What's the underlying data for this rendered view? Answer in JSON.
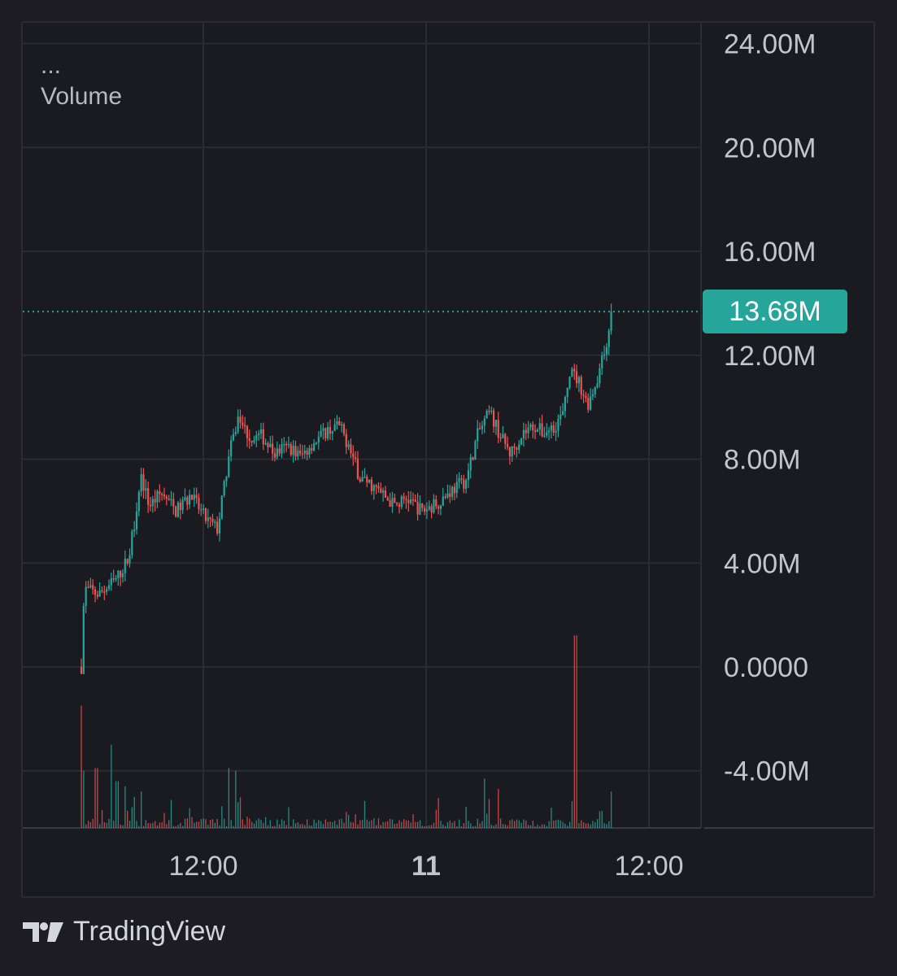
{
  "overlay": {
    "ellipsis": "...",
    "indicator_label": "Volume"
  },
  "footer": {
    "brand": "TradingView",
    "logo_icon": "tradingview-logo-icon"
  },
  "colors": {
    "background": "#1a1a21",
    "grid": "#2b2b33",
    "up": "#26a69a",
    "down": "#ef5350",
    "axis_text": "#c3c5cc",
    "price_line": "#26a69a"
  },
  "chart_data": {
    "type": "candlestick",
    "ylim": [
      -6200000,
      24800000
    ],
    "y_ticks": [
      {
        "value": 24000000,
        "label": "24.00M"
      },
      {
        "value": 20000000,
        "label": "20.00M"
      },
      {
        "value": 16000000,
        "label": "16.00M"
      },
      {
        "value": 12000000,
        "label": "12.00M"
      },
      {
        "value": 8000000,
        "label": "8.00M"
      },
      {
        "value": 4000000,
        "label": "4.00M"
      },
      {
        "value": 0,
        "label": "0.0000"
      },
      {
        "value": -4000000,
        "label": "-4.00M"
      }
    ],
    "x_ticks": [
      {
        "label": "12:00",
        "bold": false
      },
      {
        "label": "11",
        "bold": true
      },
      {
        "label": "12:00",
        "bold": false
      }
    ],
    "current_price": {
      "value": 13680000,
      "label": "13.68M"
    },
    "price_path": [
      [
        0.0,
        0
      ],
      [
        0.01,
        3.0
      ],
      [
        0.06,
        2.8
      ],
      [
        0.12,
        3.4
      ],
      [
        0.16,
        4.2
      ],
      [
        0.185,
        6.0
      ],
      [
        0.2,
        7.4
      ],
      [
        0.23,
        6.2
      ],
      [
        0.27,
        6.7
      ],
      [
        0.32,
        6.0
      ],
      [
        0.37,
        6.6
      ],
      [
        0.42,
        5.7
      ],
      [
        0.46,
        5.3
      ],
      [
        0.5,
        8.2
      ],
      [
        0.53,
        9.6
      ],
      [
        0.57,
        8.8
      ],
      [
        0.61,
        8.9
      ],
      [
        0.65,
        8.2
      ],
      [
        0.7,
        8.5
      ],
      [
        0.74,
        8.1
      ],
      [
        0.78,
        8.6
      ],
      [
        0.83,
        9.1
      ],
      [
        0.87,
        9.3
      ],
      [
        0.9,
        8.6
      ],
      [
        0.94,
        7.3
      ],
      [
        0.98,
        7.0
      ],
      [
        1.02,
        6.6
      ],
      [
        1.06,
        6.2
      ],
      [
        1.1,
        6.5
      ],
      [
        1.15,
        6.0
      ],
      [
        1.2,
        6.3
      ],
      [
        1.25,
        6.8
      ],
      [
        1.3,
        7.2
      ],
      [
        1.34,
        9.0
      ],
      [
        1.38,
        9.8
      ],
      [
        1.42,
        8.8
      ],
      [
        1.45,
        8.2
      ],
      [
        1.49,
        9.0
      ],
      [
        1.53,
        9.3
      ],
      [
        1.56,
        9.0
      ],
      [
        1.6,
        9.3
      ],
      [
        1.63,
        9.8
      ],
      [
        1.65,
        11.4
      ],
      [
        1.68,
        11.0
      ],
      [
        1.71,
        10.1
      ],
      [
        1.74,
        11.0
      ],
      [
        1.77,
        12.2
      ],
      [
        1.79,
        13.68
      ]
    ],
    "volume_spikes": [
      [
        0.0,
        4.7
      ],
      [
        0.01,
        2.2
      ],
      [
        0.05,
        2.3
      ],
      [
        0.1,
        3.2
      ],
      [
        0.12,
        1.8
      ],
      [
        0.15,
        1.6
      ],
      [
        0.2,
        1.4
      ],
      [
        0.5,
        2.3
      ],
      [
        0.52,
        2.2
      ],
      [
        0.7,
        0.8
      ],
      [
        1.2,
        0.7
      ],
      [
        1.36,
        1.9
      ],
      [
        1.41,
        1.5
      ],
      [
        1.67,
        7.4
      ],
      [
        1.79,
        1.4
      ]
    ]
  }
}
